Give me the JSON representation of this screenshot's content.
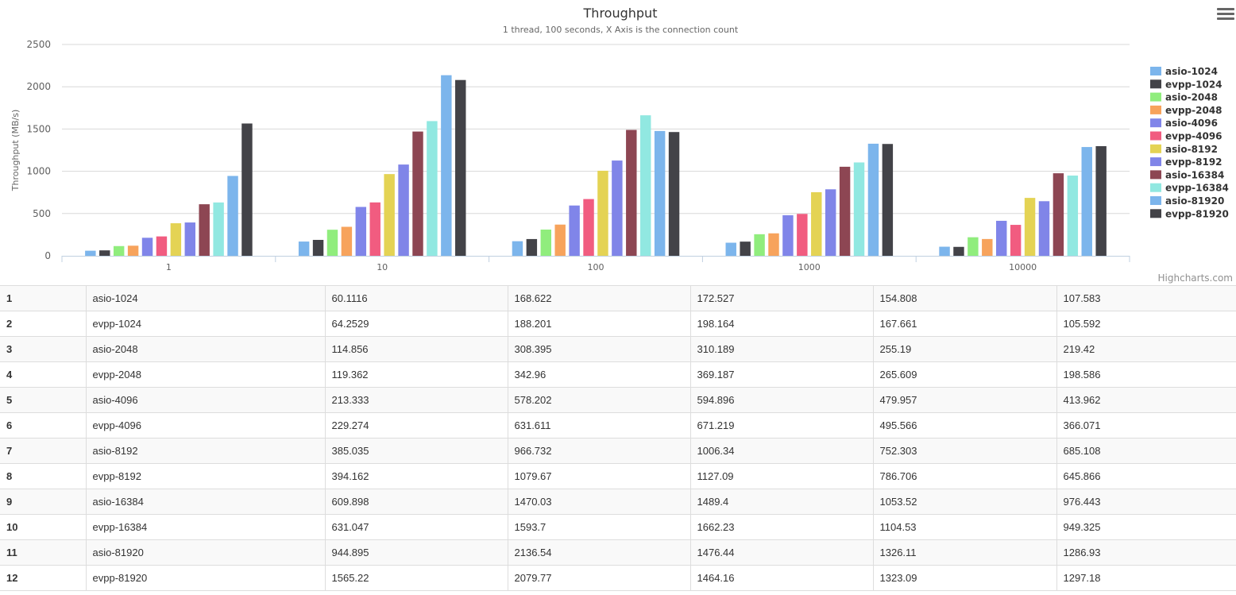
{
  "chart_data": {
    "type": "bar",
    "title": "Throughput",
    "subtitle": "1 thread, 100 seconds, X Axis is the connection count",
    "ylabel": "Throughput (MB/s)",
    "xlabel": "",
    "ylim": [
      0,
      2500
    ],
    "yticks": [
      0,
      500,
      1000,
      1500,
      2000,
      2500
    ],
    "grid": true,
    "legend_position": "right",
    "categories": [
      "1",
      "10",
      "100",
      "1000",
      "10000"
    ],
    "series": [
      {
        "name": "asio-1024",
        "color": "#7cb5ec",
        "values": [
          60.1116,
          168.622,
          172.527,
          154.808,
          107.583
        ]
      },
      {
        "name": "evpp-1024",
        "color": "#434348",
        "values": [
          64.2529,
          188.201,
          198.164,
          167.661,
          105.592
        ]
      },
      {
        "name": "asio-2048",
        "color": "#90ed7d",
        "values": [
          114.856,
          308.395,
          310.189,
          255.19,
          219.42
        ]
      },
      {
        "name": "evpp-2048",
        "color": "#f7a35c",
        "values": [
          119.362,
          342.96,
          369.187,
          265.609,
          198.586
        ]
      },
      {
        "name": "asio-4096",
        "color": "#8085e9",
        "values": [
          213.333,
          578.202,
          594.896,
          479.957,
          413.962
        ]
      },
      {
        "name": "evpp-4096",
        "color": "#f15c80",
        "values": [
          229.274,
          631.611,
          671.219,
          495.566,
          366.071
        ]
      },
      {
        "name": "asio-8192",
        "color": "#e4d354",
        "values": [
          385.035,
          966.732,
          1006.34,
          752.303,
          685.108
        ]
      },
      {
        "name": "evpp-8192",
        "color": "#8085e8",
        "values": [
          394.162,
          1079.67,
          1127.09,
          786.706,
          645.866
        ]
      },
      {
        "name": "asio-16384",
        "color": "#8d4653",
        "values": [
          609.898,
          1470.03,
          1489.4,
          1053.52,
          976.443
        ]
      },
      {
        "name": "evpp-16384",
        "color": "#91e8e1",
        "values": [
          631.047,
          1593.7,
          1662.23,
          1104.53,
          949.325
        ]
      },
      {
        "name": "asio-81920",
        "color": "#7cb5ec",
        "values": [
          944.895,
          2136.54,
          1476.44,
          1326.11,
          1286.93
        ]
      },
      {
        "name": "evpp-81920",
        "color": "#434348",
        "values": [
          1565.22,
          2079.77,
          1464.16,
          1323.09,
          1297.18
        ]
      }
    ]
  },
  "credits": "Highcharts.com",
  "menu_icon": "hamburger-menu-icon",
  "table": {
    "rows": [
      {
        "num": "1",
        "name": "asio-1024",
        "cells": [
          "60.1116",
          "168.622",
          "172.527",
          "154.808",
          "107.583"
        ]
      },
      {
        "num": "2",
        "name": "evpp-1024",
        "cells": [
          "64.2529",
          "188.201",
          "198.164",
          "167.661",
          "105.592"
        ]
      },
      {
        "num": "3",
        "name": "asio-2048",
        "cells": [
          "114.856",
          "308.395",
          "310.189",
          "255.19",
          "219.42"
        ]
      },
      {
        "num": "4",
        "name": "evpp-2048",
        "cells": [
          "119.362",
          "342.96",
          "369.187",
          "265.609",
          "198.586"
        ]
      },
      {
        "num": "5",
        "name": "asio-4096",
        "cells": [
          "213.333",
          "578.202",
          "594.896",
          "479.957",
          "413.962"
        ]
      },
      {
        "num": "6",
        "name": "evpp-4096",
        "cells": [
          "229.274",
          "631.611",
          "671.219",
          "495.566",
          "366.071"
        ]
      },
      {
        "num": "7",
        "name": "asio-8192",
        "cells": [
          "385.035",
          "966.732",
          "1006.34",
          "752.303",
          "685.108"
        ]
      },
      {
        "num": "8",
        "name": "evpp-8192",
        "cells": [
          "394.162",
          "1079.67",
          "1127.09",
          "786.706",
          "645.866"
        ]
      },
      {
        "num": "9",
        "name": "asio-16384",
        "cells": [
          "609.898",
          "1470.03",
          "1489.4",
          "1053.52",
          "976.443"
        ]
      },
      {
        "num": "10",
        "name": "evpp-16384",
        "cells": [
          "631.047",
          "1593.7",
          "1662.23",
          "1104.53",
          "949.325"
        ]
      },
      {
        "num": "11",
        "name": "asio-81920",
        "cells": [
          "944.895",
          "2136.54",
          "1476.44",
          "1326.11",
          "1286.93"
        ]
      },
      {
        "num": "12",
        "name": "evpp-81920",
        "cells": [
          "1565.22",
          "2079.77",
          "1464.16",
          "1323.09",
          "1297.18"
        ]
      }
    ]
  }
}
